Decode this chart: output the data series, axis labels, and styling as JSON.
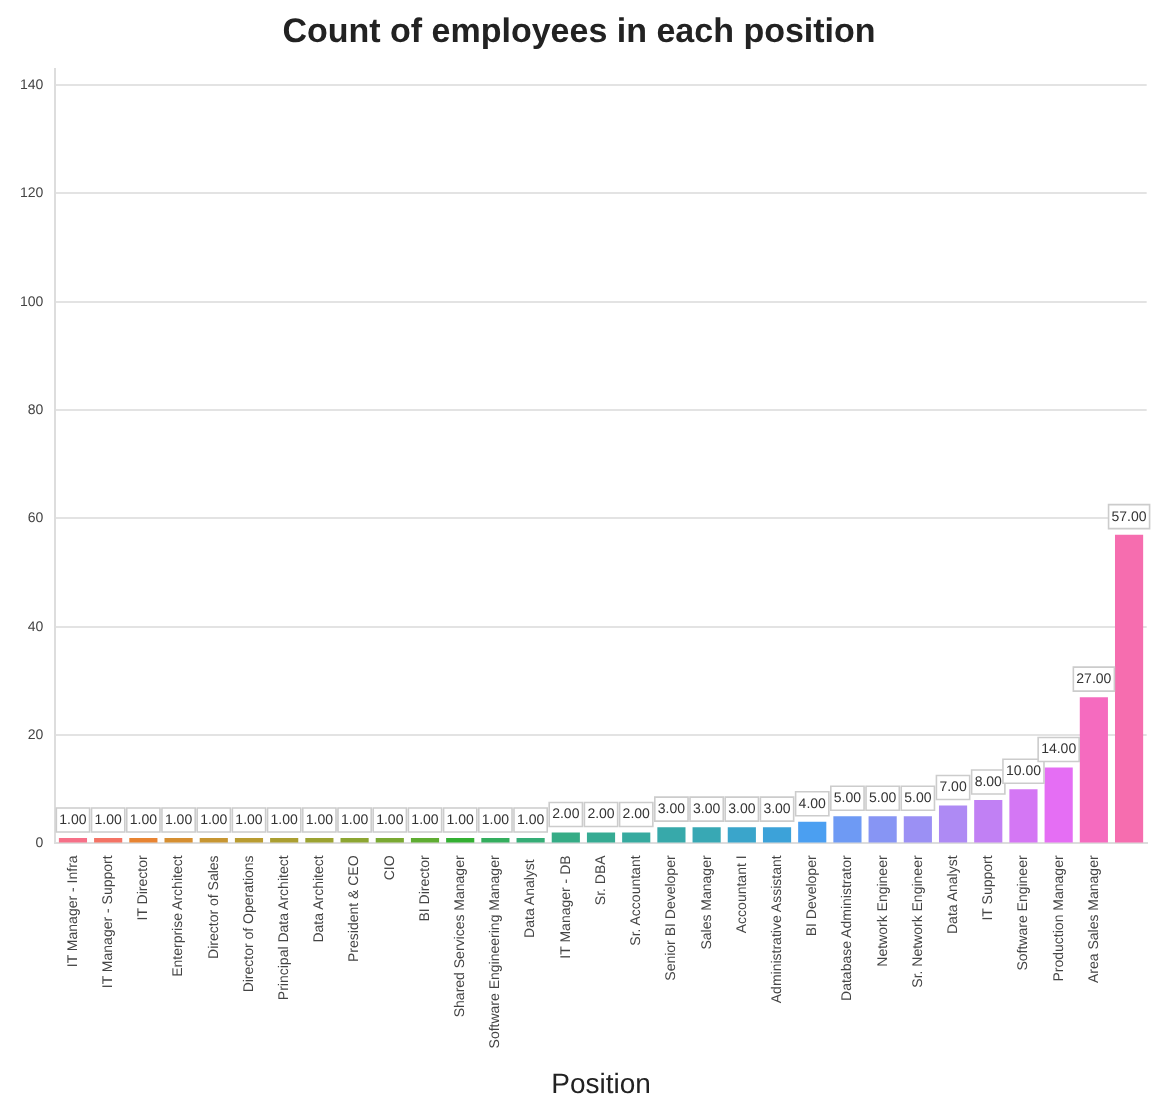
{
  "chart_data": {
    "type": "bar",
    "title": "Count of employees in each position",
    "xlabel": "Position",
    "categories": [
      "IT Manager - Infra",
      "IT Manager - Support",
      "IT Director",
      "Enterprise Architect",
      "Director of Sales",
      "Director of Operations",
      "Principal Data Architect",
      "Data Architect",
      "President & CEO",
      "CIO",
      "BI Director",
      "Shared Services Manager",
      "Software Engineering Manager",
      "Data Analyst ",
      "IT Manager - DB",
      "Sr. DBA",
      "Sr. Accountant",
      "Senior BI Developer",
      "Sales Manager",
      "Accountant I",
      "Administrative Assistant",
      "BI Developer",
      "Database Administrator",
      "Network Engineer",
      "Sr. Network Engineer",
      "Data Analyst",
      "IT Support",
      "Software Engineer",
      "Production Manager",
      "Area Sales Manager",
      null
    ],
    "values": [
      1,
      1,
      1,
      1,
      1,
      1,
      1,
      1,
      1,
      1,
      1,
      1,
      1,
      1,
      2,
      2,
      2,
      3,
      3,
      3,
      3,
      4,
      5,
      5,
      5,
      7,
      8,
      10,
      14,
      27,
      57
    ],
    "colors": [
      "#f67088",
      "#f47365",
      "#e88432",
      "#d68f31",
      "#c79632",
      "#b99c31",
      "#ab9f31",
      "#9ca331",
      "#8da632",
      "#7aa932",
      "#5fad32",
      "#33b032",
      "#34ae5e",
      "#35ad76",
      "#35ac86",
      "#36ab93",
      "#36aa9f",
      "#37a9aa",
      "#38a8b4",
      "#3aa5cb",
      "#3ca2d9",
      "#4b9ff1",
      "#6e9af4",
      "#8795f4",
      "#9b90f4",
      "#ae8af4",
      "#c180f4",
      "#d477f4",
      "#e56ef4",
      "#f56bbf",
      "#f66daf"
    ],
    "ylim": [
      0,
      143
    ],
    "yticks": [
      0,
      20,
      40,
      60,
      80,
      100,
      120,
      140
    ],
    "grid": "y",
    "value_labels": [
      "1.00",
      "1.00",
      "1.00",
      "1.00",
      "1.00",
      "1.00",
      "1.00",
      "1.00",
      "1.00",
      "1.00",
      "1.00",
      "1.00",
      "1.00",
      "1.00",
      "2.00",
      "2.00",
      "2.00",
      "3.00",
      "3.00",
      "3.00",
      "3.00",
      "4.00",
      "5.00",
      "5.00",
      "5.00",
      "7.00",
      "8.00",
      "10.00",
      "14.00",
      "27.00",
      "57.00"
    ]
  }
}
